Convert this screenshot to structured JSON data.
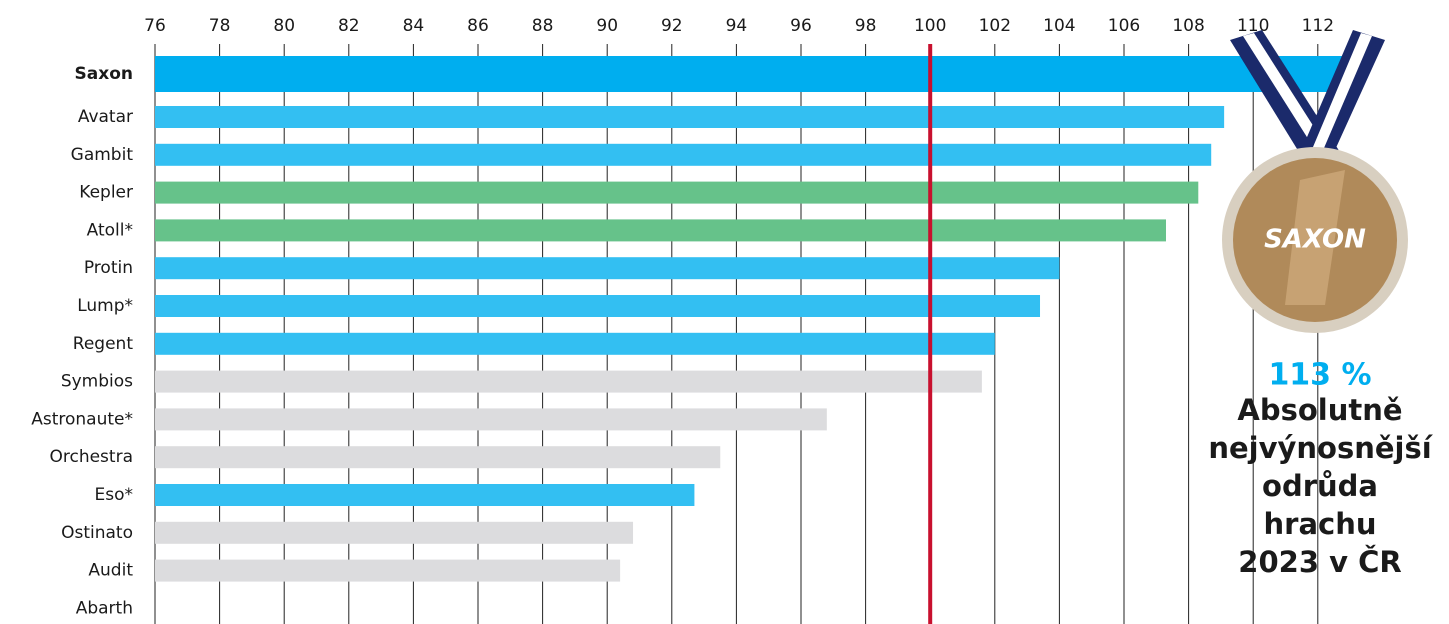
{
  "chart_data": {
    "type": "bar",
    "orientation": "horizontal",
    "categories": [
      "Saxon",
      "Avatar",
      "Gambit",
      "Kepler",
      "Atoll*",
      "Protin",
      "Lump*",
      "Regent",
      "Symbios",
      "Astronaute*",
      "Orchestra",
      "Eso*",
      "Ostinato",
      "Audit",
      "Abarth"
    ],
    "values": [
      113,
      109.1,
      108.7,
      108.3,
      107.3,
      104.0,
      103.4,
      102.0,
      101.6,
      96.8,
      93.5,
      92.7,
      90.8,
      90.4,
      null
    ],
    "colors": [
      "#00aeef",
      "#33bff2",
      "#33bff2",
      "#66c28a",
      "#66c28a",
      "#33bff2",
      "#33bff2",
      "#33bff2",
      "#dcdcde",
      "#dcdcde",
      "#dcdcde",
      "#33bff2",
      "#dcdcde",
      "#dcdcde",
      "#dcdcde"
    ],
    "xlim": [
      76,
      113.8
    ],
    "xticks": [
      76,
      78,
      80,
      82,
      84,
      86,
      88,
      90,
      92,
      94,
      96,
      98,
      100,
      102,
      104,
      106,
      108,
      110,
      112
    ],
    "grid": true,
    "reference_line": {
      "value": 100,
      "color": "#c8102e"
    },
    "medal_text": "SAXON",
    "annotation_value": "113 %",
    "annotation_lines": [
      "Absolutně",
      "nejvýnosnější",
      "odrůda",
      "hrachu",
      "2023 v ČR"
    ]
  }
}
